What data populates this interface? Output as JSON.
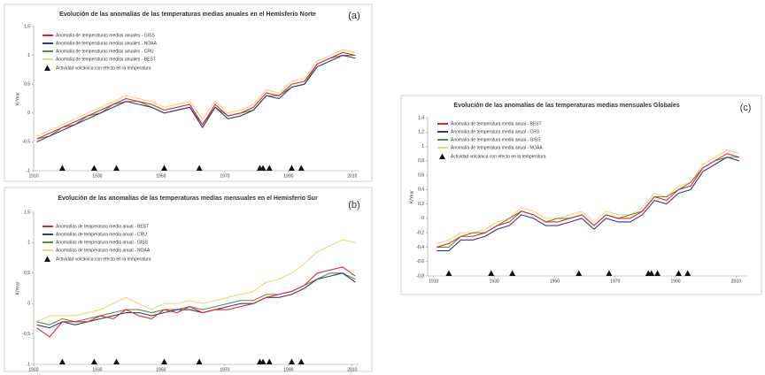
{
  "chart_data": [
    {
      "type": "line",
      "title": "Evolución de las anomalías de las temperaturas medias anuales en el Hemisferio Norte",
      "panel": "(a)",
      "ylabel": "K/Year",
      "x": [
        1911,
        1915,
        1919,
        1923,
        1927,
        1931,
        1935,
        1939,
        1943,
        1947,
        1951,
        1955,
        1959,
        1963,
        1967,
        1971,
        1975,
        1979,
        1983,
        1987,
        1991,
        1995,
        1999,
        2003,
        2007,
        2011
      ],
      "series": [
        {
          "name": "Anomalía de temperaturas medias anuales - GISS",
          "color": "#e8242b",
          "values": [
            -0.45,
            -0.35,
            -0.25,
            -0.15,
            -0.05,
            0.05,
            0.15,
            0.25,
            0.2,
            0.15,
            0.05,
            0.1,
            0.15,
            -0.2,
            0.15,
            -0.05,
            0.0,
            0.1,
            0.35,
            0.3,
            0.5,
            0.55,
            0.85,
            0.95,
            1.05,
            1.0
          ]
        },
        {
          "name": "Anomalía de temperaturas medias anuales - NOAA",
          "color": "#2e3d86",
          "values": [
            -0.5,
            -0.4,
            -0.3,
            -0.2,
            -0.1,
            0.0,
            0.1,
            0.2,
            0.15,
            0.1,
            0.0,
            0.05,
            0.1,
            -0.25,
            0.1,
            -0.1,
            -0.05,
            0.05,
            0.3,
            0.25,
            0.45,
            0.5,
            0.8,
            0.9,
            1.0,
            0.95
          ]
        },
        {
          "name": "Anomalía de temperaturas medias anuales - CRU",
          "color": "#5a8f3a",
          "values": [
            -0.45,
            -0.4,
            -0.25,
            -0.2,
            -0.05,
            0.0,
            0.15,
            0.2,
            0.2,
            0.1,
            0.0,
            0.05,
            0.1,
            -0.2,
            0.1,
            -0.05,
            0.0,
            0.05,
            0.3,
            0.3,
            0.45,
            0.5,
            0.85,
            0.95,
            1.0,
            1.0
          ]
        },
        {
          "name": "Anomalía de temperaturas medias anuales - BEST",
          "color": "#f3d57a",
          "values": [
            -0.4,
            -0.3,
            -0.2,
            -0.1,
            0.0,
            0.1,
            0.2,
            0.3,
            0.25,
            0.2,
            0.1,
            0.15,
            0.2,
            -0.1,
            0.2,
            0.0,
            0.05,
            0.15,
            0.4,
            0.35,
            0.55,
            0.6,
            0.9,
            1.0,
            1.1,
            1.05
          ]
        }
      ],
      "volcanic": {
        "name": "Actividad volcánica con efecto en la temperatura",
        "x": [
          1919,
          1929,
          1936,
          1951,
          1962,
          1981,
          1982,
          1984,
          1991,
          1994
        ],
        "values": [
          -1,
          -1,
          -1,
          -1,
          -1,
          -1,
          -1,
          -1,
          -1,
          -1
        ]
      },
      "xlim": [
        1910,
        2012
      ],
      "xticks": [
        1910,
        1930,
        1950,
        1970,
        1990,
        2010
      ],
      "ylim": [
        -1,
        1.5
      ],
      "yticks": [
        -1,
        {
          "value": -0.5,
          "label": "-0,5"
        },
        0,
        {
          "value": 0.5,
          "label": "0,5"
        },
        1,
        {
          "value": 1.5,
          "label": "1,5"
        }
      ]
    },
    {
      "type": "line",
      "title": "Evolución de las anomalías de las temperaturas medias mensuales en el Hemisferio Sur",
      "panel": "(b)",
      "ylabel": "K/Year",
      "x": [
        1911,
        1915,
        1919,
        1923,
        1927,
        1931,
        1935,
        1939,
        1943,
        1947,
        1951,
        1955,
        1959,
        1963,
        1967,
        1971,
        1975,
        1979,
        1983,
        1987,
        1991,
        1995,
        1999,
        2003,
        2007,
        2011
      ],
      "series": [
        {
          "name": "Anomalías de temperatura media anual - BEST",
          "color": "#e8242b",
          "values": [
            -0.4,
            -0.55,
            -0.3,
            -0.3,
            -0.3,
            -0.2,
            -0.25,
            -0.1,
            -0.2,
            -0.25,
            -0.1,
            -0.15,
            -0.05,
            -0.15,
            -0.1,
            -0.1,
            -0.05,
            0.0,
            0.1,
            0.15,
            0.2,
            0.3,
            0.5,
            0.55,
            0.6,
            0.45
          ]
        },
        {
          "name": "Anomalías de temperatura media anual - CRU",
          "color": "#2e3d86",
          "values": [
            -0.35,
            -0.4,
            -0.3,
            -0.35,
            -0.3,
            -0.25,
            -0.2,
            -0.15,
            -0.15,
            -0.2,
            -0.15,
            -0.1,
            -0.1,
            -0.15,
            -0.1,
            -0.05,
            0.0,
            0.0,
            0.1,
            0.1,
            0.15,
            0.25,
            0.4,
            0.45,
            0.5,
            0.35
          ]
        },
        {
          "name": "Anomalías de temperatura media anual - GISS",
          "color": "#5a8f3a",
          "values": [
            -0.3,
            -0.35,
            -0.25,
            -0.3,
            -0.25,
            -0.2,
            -0.15,
            -0.1,
            -0.1,
            -0.15,
            -0.1,
            -0.1,
            -0.05,
            -0.1,
            -0.05,
            0.0,
            0.05,
            0.05,
            0.15,
            0.15,
            0.2,
            0.3,
            0.4,
            0.5,
            0.5,
            0.4
          ]
        },
        {
          "name": "Anomalías de temperatura media anual - NOAA",
          "color": "#f3d57a",
          "values": [
            -0.3,
            -0.2,
            -0.2,
            -0.2,
            -0.15,
            -0.1,
            0.0,
            0.1,
            0.0,
            -0.1,
            0.0,
            0.0,
            0.05,
            0.0,
            0.05,
            0.1,
            0.15,
            0.2,
            0.35,
            0.4,
            0.5,
            0.65,
            0.85,
            0.95,
            1.05,
            1.0
          ]
        }
      ],
      "volcanic": {
        "name": "Actividad volcánica con efecto en la temperatura",
        "x": [
          1919,
          1929,
          1936,
          1951,
          1962,
          1981,
          1982,
          1984,
          1991,
          1994
        ],
        "values": [
          -1,
          -1,
          -1,
          -1,
          -1,
          -1,
          -1,
          -1,
          -1,
          -1
        ]
      },
      "xlim": [
        1910,
        2012
      ],
      "xticks": [
        1910,
        1930,
        1950,
        1970,
        1990,
        2010
      ],
      "ylim": [
        -1,
        1.5
      ],
      "yticks": [
        -1,
        {
          "value": -0.5,
          "label": "-0,5"
        },
        0,
        {
          "value": 0.5,
          "label": "0,5"
        },
        1,
        {
          "value": 1.5,
          "label": "1,5"
        }
      ]
    },
    {
      "type": "line",
      "title": "Evolución de las anomalías de las temperaturas medias mensuales Globales",
      "panel": "(c)",
      "ylabel": "K/Year",
      "x": [
        1911,
        1915,
        1919,
        1923,
        1927,
        1931,
        1935,
        1939,
        1943,
        1947,
        1951,
        1955,
        1959,
        1963,
        1967,
        1971,
        1975,
        1979,
        1983,
        1987,
        1991,
        1995,
        1999,
        2003,
        2007,
        2011
      ],
      "series": [
        {
          "name": "Anomalía de temperatura media anual - BEST",
          "color": "#e8242b",
          "values": [
            -0.4,
            -0.35,
            -0.25,
            -0.25,
            -0.2,
            -0.1,
            -0.05,
            0.1,
            0.05,
            -0.05,
            -0.05,
            0.0,
            0.05,
            -0.1,
            0.05,
            0.0,
            0.0,
            0.1,
            0.3,
            0.25,
            0.4,
            0.45,
            0.7,
            0.8,
            0.9,
            0.85
          ]
        },
        {
          "name": "Anomalía de temperatura media anual - CRU",
          "color": "#2e3d86",
          "values": [
            -0.45,
            -0.45,
            -0.3,
            -0.3,
            -0.25,
            -0.15,
            -0.1,
            0.05,
            0.0,
            -0.1,
            -0.1,
            -0.05,
            0.0,
            -0.15,
            0.0,
            -0.05,
            -0.05,
            0.05,
            0.25,
            0.2,
            0.35,
            0.4,
            0.65,
            0.75,
            0.85,
            0.8
          ]
        },
        {
          "name": "Anomalía de temperatura media anual - GISS",
          "color": "#5a8f3a",
          "values": [
            -0.4,
            -0.4,
            -0.25,
            -0.2,
            -0.2,
            -0.1,
            0.0,
            0.1,
            0.05,
            -0.05,
            0.0,
            0.0,
            0.05,
            -0.1,
            0.05,
            0.0,
            0.05,
            0.1,
            0.3,
            0.3,
            0.4,
            0.5,
            0.7,
            0.8,
            0.85,
            0.85
          ]
        },
        {
          "name": "Anomalía de temperatura media anual - NOAA",
          "color": "#f3d57a",
          "values": [
            -0.35,
            -0.3,
            -0.2,
            -0.2,
            -0.15,
            -0.05,
            0.0,
            0.15,
            0.1,
            0.0,
            0.0,
            0.05,
            0.1,
            -0.05,
            0.1,
            0.05,
            0.05,
            0.15,
            0.35,
            0.3,
            0.45,
            0.5,
            0.75,
            0.85,
            0.95,
            0.9
          ]
        }
      ],
      "volcanic": {
        "name": "Actividad volcánica con efecto en la temperatura",
        "x": [
          1915,
          1929,
          1936,
          1958,
          1968,
          1981,
          1982,
          1984,
          1991,
          1994
        ],
        "values": [
          -0.8,
          -0.8,
          -0.8,
          -0.8,
          -0.8,
          -0.8,
          -0.8,
          -0.8,
          -0.8,
          -0.8
        ]
      },
      "xlim": [
        1908,
        2014
      ],
      "xticks": [
        1910,
        1930,
        1950,
        1970,
        1990,
        2010
      ],
      "ylim": [
        -0.8,
        1.4
      ],
      "yticks": [
        {
          "value": -0.8,
          "label": "-0,8"
        },
        {
          "value": -0.6,
          "label": "-0,6"
        },
        {
          "value": -0.4,
          "label": "-0,4"
        },
        {
          "value": -0.2,
          "label": "-0,2"
        },
        0,
        {
          "value": 0.2,
          "label": "0,2"
        },
        {
          "value": 0.4,
          "label": "0,4"
        },
        {
          "value": 0.6,
          "label": "0,6"
        },
        {
          "value": 0.8,
          "label": "0,8"
        },
        1,
        {
          "value": 1.2,
          "label": "1,2"
        },
        {
          "value": 1.4,
          "label": "1,4"
        }
      ]
    }
  ]
}
